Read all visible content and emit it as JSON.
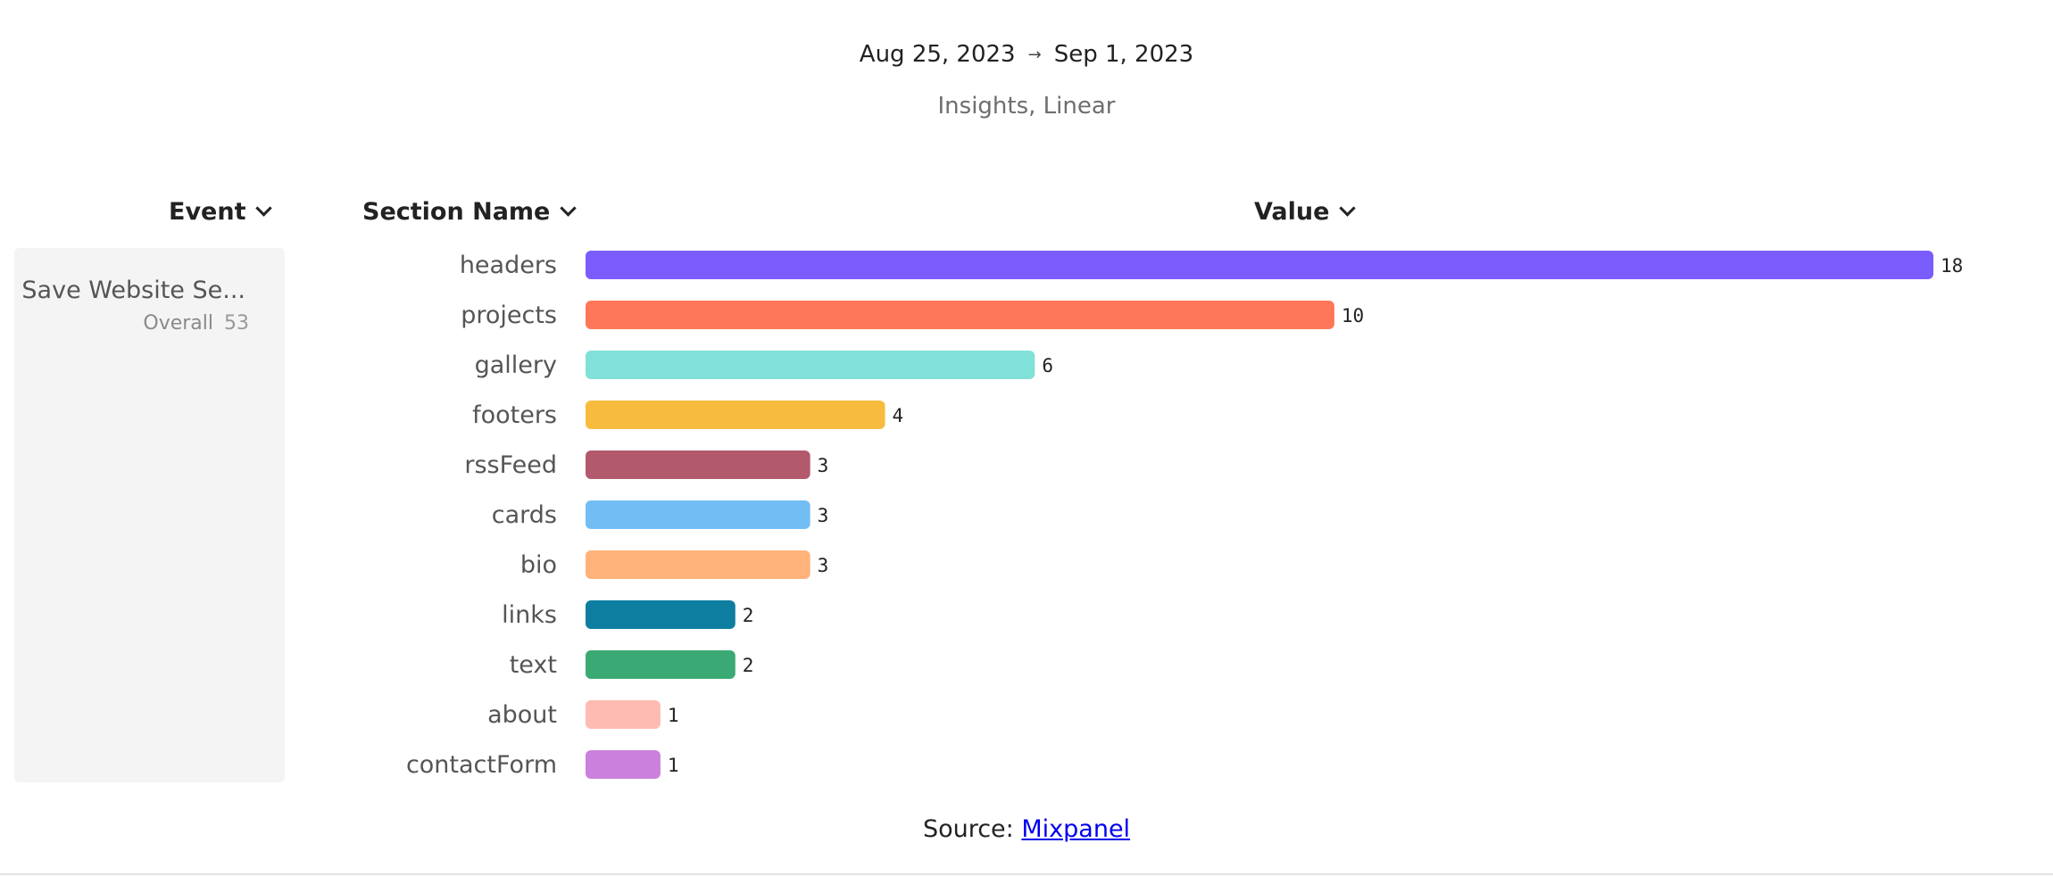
{
  "header": {
    "date_start": "Aug 25, 2023",
    "date_arrow": "→",
    "date_end": "Sep 1, 2023",
    "subtitle": "Insights, Linear"
  },
  "columns": {
    "event": "Event",
    "section_name": "Section Name",
    "value": "Value"
  },
  "event": {
    "name": "Save Website Se...",
    "overall_label": "Overall",
    "overall_value": "53"
  },
  "source": {
    "label": "Source:",
    "link_text": "Mixpanel"
  },
  "chart_data": {
    "type": "bar",
    "orientation": "horizontal",
    "categories": [
      "headers",
      "projects",
      "gallery",
      "footers",
      "rssFeed",
      "cards",
      "bio",
      "links",
      "text",
      "about",
      "contactForm"
    ],
    "values": [
      18,
      10,
      6,
      4,
      3,
      3,
      3,
      2,
      2,
      1,
      1
    ],
    "colors": [
      "#7b5cfd",
      "#fe7758",
      "#80e1d9",
      "#f7bc3d",
      "#b2596e",
      "#72bef4",
      "#ffb27a",
      "#0d7ea0",
      "#3ba974",
      "#febbb2",
      "#ca80dc"
    ],
    "xlim": [
      0,
      18
    ],
    "grid": false,
    "legend": "none"
  }
}
